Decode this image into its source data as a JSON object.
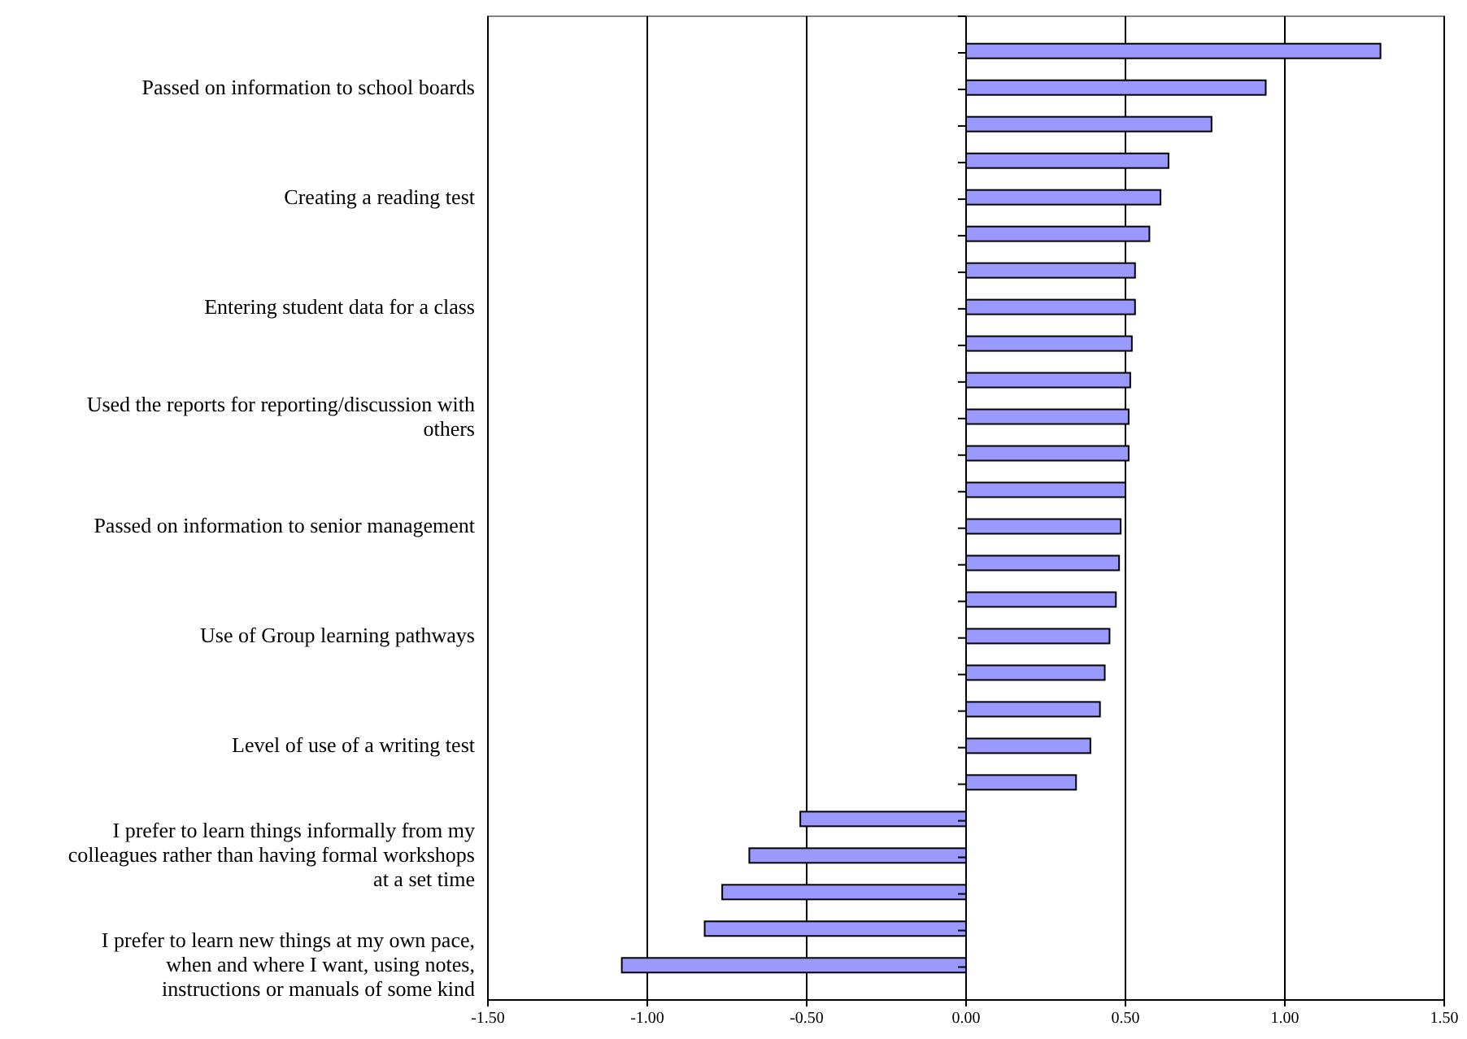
{
  "chart_data": {
    "type": "bar",
    "orientation": "horizontal",
    "categories": [
      null,
      "Passed on information to school boards",
      null,
      null,
      "Creating a reading test",
      null,
      null,
      "Entering student data for a class",
      null,
      null,
      "Used the reports for reporting/discussion with others",
      null,
      null,
      "Passed on information to senior management",
      null,
      null,
      "Use of Group learning pathways",
      null,
      null,
      "Level of use of a writing test",
      null,
      null,
      "I prefer to learn things informally from my colleagues rather than having formal workshops at a set time",
      null,
      null,
      "I prefer to learn new things at my own pace, when and where I want, using notes, instructions or manuals of some kind"
    ],
    "values": [
      1.3,
      0.94,
      0.77,
      0.635,
      0.61,
      0.575,
      0.53,
      0.53,
      0.52,
      0.515,
      0.51,
      0.51,
      0.5,
      0.485,
      0.48,
      0.47,
      0.45,
      0.435,
      0.42,
      0.39,
      0.345,
      -0.52,
      -0.68,
      -0.765,
      -0.82,
      -1.08
    ],
    "color": "#9999ff",
    "xlim": [
      -1.5,
      1.5
    ],
    "xticks": [
      {
        "value": -1.5,
        "label": "-1.50"
      },
      {
        "value": -1,
        "label": "-1.00"
      },
      {
        "value": -0.5,
        "label": "-0.50"
      },
      {
        "value": 0,
        "label": "0.00"
      },
      {
        "value": 0.5,
        "label": "0.50"
      },
      {
        "value": 1,
        "label": "1.00"
      },
      {
        "value": 1.5,
        "label": "1.50"
      }
    ],
    "grid": "x"
  }
}
